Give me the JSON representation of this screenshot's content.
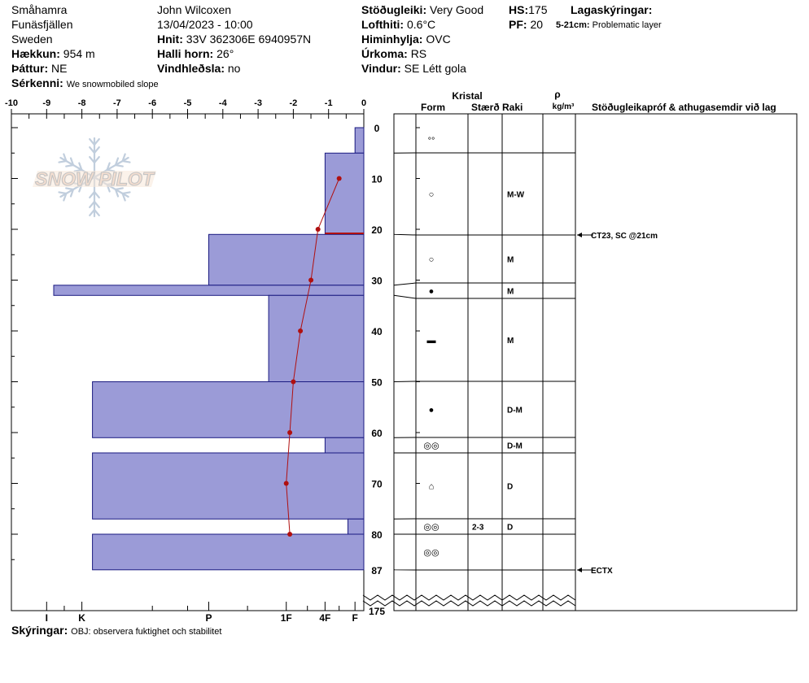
{
  "header": {
    "location": "Småhamra",
    "region": "Funäsfjällen",
    "country": "Sweden",
    "elevation_label": "Hækkun:",
    "elevation": "954 m",
    "aspect_label": "Þáttur:",
    "aspect": "NE",
    "features_label": "Sérkenni:",
    "features": "We snowmobiled slope",
    "observer": "John Wilcoxen",
    "datetime": "13/04/2023 - 10:00",
    "coords_label": "Hnit:",
    "coords": "33V 362306E 6940957N",
    "slope_label": "Halli horn:",
    "slope": "26°",
    "wind_loading_label": "Vindhleðsla:",
    "wind_loading": "no",
    "stability_label": "Stöðugleiki:",
    "stability": "Very Good",
    "air_temp_label": "Lofthiti:",
    "air_temp": "0.6°C",
    "sky_label": "Himinhylja:",
    "sky": "OVC",
    "precip_label": "Úrkoma:",
    "precip": "RS",
    "wind_label": "Vindur:",
    "wind": "SE Létt gola",
    "hs_label": "HS:",
    "hs": "175",
    "pf_label": "PF:",
    "pf": "20",
    "layer_notes_label": "Lagaskýringar:",
    "layer_note_range": "5-21cm:",
    "layer_note": "Problematic layer",
    "footer_label": "Skýringar:",
    "footer": "OBJ: observera fuktighet och stabilitet"
  },
  "logo": {
    "text": "SNOW PILOT"
  },
  "table_headers": {
    "crystal": "Kristal",
    "form": "Form",
    "size": "Stærð",
    "moisture": "Raki",
    "rho": "ρ",
    "density_unit": "kg/m³",
    "tests": "Stöðugleikapróf & athugasemdir við lag"
  },
  "chart_data": {
    "type": "snow-profile",
    "temperature_axis": {
      "ticks": [
        "-10",
        "-9",
        "-8",
        "-7",
        "-6",
        "-5",
        "-4",
        "-3",
        "-2",
        "-1",
        "0"
      ],
      "range": [
        -10,
        0
      ]
    },
    "hardness_axis": {
      "ticks": [
        "I",
        "K",
        "P",
        "1F",
        "4F",
        "F"
      ]
    },
    "depth_axis": {
      "ticks": [
        "0",
        "10",
        "20",
        "30",
        "40",
        "50",
        "60",
        "70",
        "80",
        "87",
        "175"
      ],
      "range_cm": [
        0,
        87
      ],
      "total_cm": 175
    },
    "temperature_profile": [
      {
        "depth": 10,
        "temp": -0.7
      },
      {
        "depth": 20,
        "temp": -1.3
      },
      {
        "depth": 30,
        "temp": -1.5
      },
      {
        "depth": 40,
        "temp": -1.8
      },
      {
        "depth": 50,
        "temp": -2.0
      },
      {
        "depth": 60,
        "temp": -2.1
      },
      {
        "depth": 70,
        "temp": -2.2
      },
      {
        "depth": 80,
        "temp": -2.1
      }
    ],
    "hardness_profile": [
      {
        "top": 0,
        "bottom": 5,
        "hardness": -0.25
      },
      {
        "top": 5,
        "bottom": 21,
        "hardness": -1.1
      },
      {
        "top": 21,
        "bottom": 31,
        "hardness": -4.4
      },
      {
        "top": 31,
        "bottom": 33,
        "hardness": -8.8
      },
      {
        "top": 33,
        "bottom": 50,
        "hardness": -2.7
      },
      {
        "top": 50,
        "bottom": 61,
        "hardness": -7.7
      },
      {
        "top": 61,
        "bottom": 64,
        "hardness": -1.1
      },
      {
        "top": 64,
        "bottom": 77,
        "hardness": -7.7
      },
      {
        "top": 77,
        "bottom": 80,
        "hardness": -0.45
      },
      {
        "top": 80,
        "bottom": 87,
        "hardness": -7.7
      }
    ],
    "layers": [
      {
        "top": 0,
        "bottom": 5,
        "form": "°°",
        "size": "",
        "moisture": ""
      },
      {
        "top": 5,
        "bottom": 21,
        "form": "○",
        "size": "",
        "moisture": "M-W"
      },
      {
        "top": 21,
        "bottom": 31,
        "form": "○",
        "size": "",
        "moisture": "M"
      },
      {
        "top": 31,
        "bottom": 33,
        "form": "●",
        "size": "",
        "moisture": "M"
      },
      {
        "top": 33,
        "bottom": 50,
        "form": "▬",
        "size": "",
        "moisture": "M"
      },
      {
        "top": 50,
        "bottom": 61,
        "form": "●",
        "size": "",
        "moisture": "D-M"
      },
      {
        "top": 61,
        "bottom": 64,
        "form": "◎◎",
        "size": "",
        "moisture": "D-M"
      },
      {
        "top": 64,
        "bottom": 77,
        "form": "⌂",
        "size": "",
        "moisture": "D"
      },
      {
        "top": 77,
        "bottom": 80,
        "form": "◎◎",
        "size": "2-3",
        "moisture": "D"
      },
      {
        "top": 80,
        "bottom": 87,
        "form": "◎◎",
        "size": "",
        "moisture": ""
      }
    ],
    "tests": [
      {
        "depth": 21,
        "text": "CT23, SC @21cm"
      },
      {
        "depth": 87,
        "text": "ECTX"
      }
    ],
    "colors": {
      "bar_fill": "#9b9bd7",
      "bar_stroke": "#1a1a80",
      "temp_line": "#b01010",
      "weak_layer": "#b01010"
    }
  }
}
